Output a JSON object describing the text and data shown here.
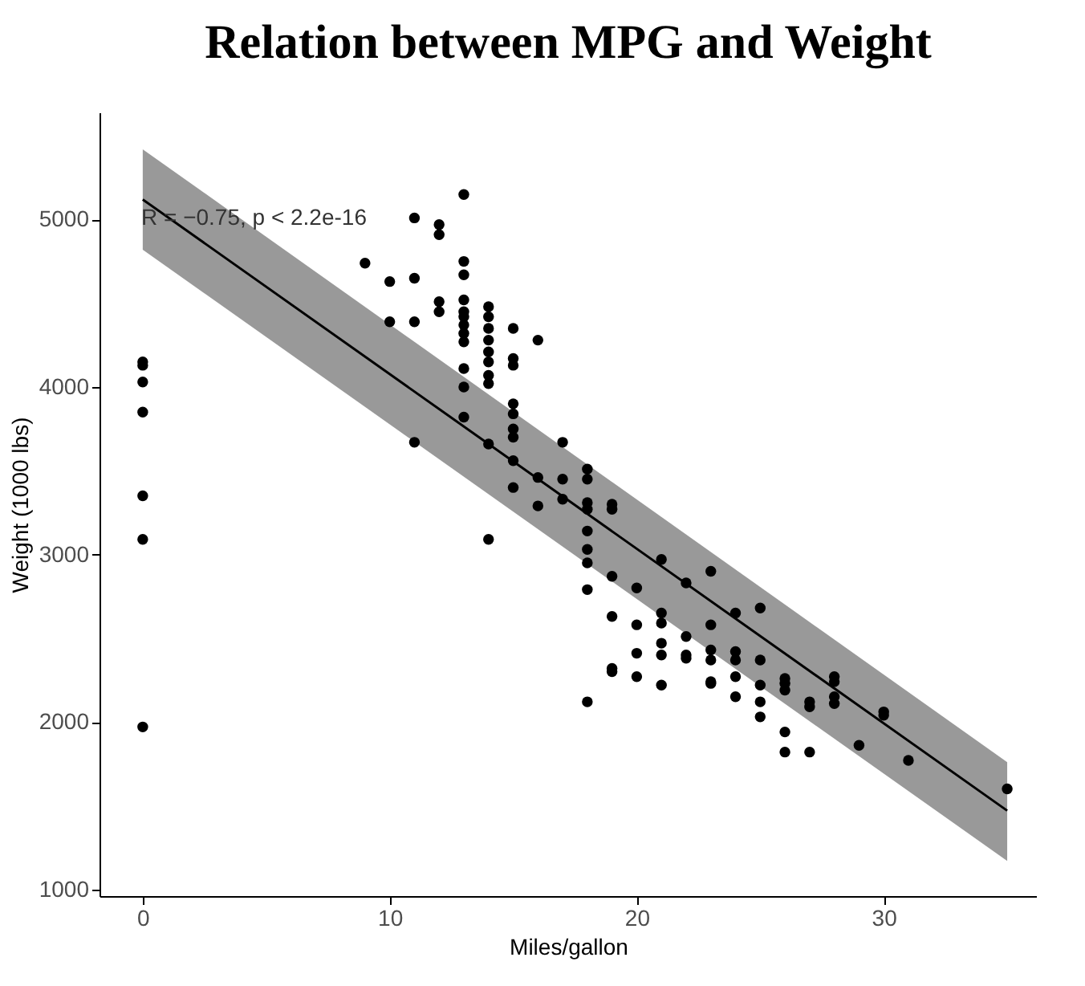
{
  "chart_data": {
    "type": "scatter",
    "title": "Relation between MPG and Weight",
    "xlabel": "Miles/gallon",
    "ylabel": "Weight (1000 lbs)",
    "xlim": [
      -1.75,
      36.2
    ],
    "xticks": [
      0,
      10,
      20,
      30
    ],
    "ylim": [
      960,
      5640
    ],
    "yticks": [
      1000,
      2000,
      3000,
      4000,
      5000
    ],
    "grid": false,
    "annotations": [
      "R = −0.75, p < 2.2e-16"
    ],
    "series": [
      {
        "color": "#000000",
        "marker": "circle",
        "x": [
          0,
          0,
          0,
          0,
          0,
          0,
          0,
          9,
          10,
          10,
          11,
          11,
          11,
          11,
          12,
          12,
          12,
          12,
          13,
          13,
          13,
          13,
          13,
          13,
          13,
          13,
          13,
          13,
          13,
          13,
          14,
          14,
          14,
          14,
          14,
          14,
          14,
          14,
          14,
          14,
          15,
          15,
          15,
          15,
          15,
          15,
          15,
          15,
          15,
          16,
          16,
          16,
          17,
          17,
          17,
          18,
          18,
          18,
          18,
          18,
          18,
          18,
          18,
          18,
          19,
          19,
          19,
          19,
          19,
          19,
          20,
          20,
          20,
          20,
          21,
          21,
          21,
          21,
          21,
          21,
          22,
          22,
          22,
          22,
          23,
          23,
          23,
          23,
          23,
          23,
          24,
          24,
          24,
          24,
          24,
          25,
          25,
          25,
          25,
          25,
          26,
          26,
          26,
          26,
          26,
          27,
          27,
          27,
          28,
          28,
          28,
          28,
          29,
          30,
          30,
          31,
          35
        ],
        "values": [
          4150,
          4130,
          4030,
          3850,
          3350,
          3090,
          1970,
          4740,
          4630,
          4390,
          5010,
          4650,
          4390,
          3670,
          4970,
          4910,
          4510,
          4450,
          5150,
          4750,
          4670,
          4520,
          4450,
          4420,
          4370,
          4320,
          4270,
          4110,
          4000,
          3820,
          4480,
          4420,
          4350,
          4280,
          4210,
          4150,
          4070,
          4020,
          3660,
          3090,
          4350,
          4170,
          4130,
          3900,
          3840,
          3750,
          3700,
          3560,
          3400,
          4280,
          3460,
          3290,
          3670,
          3450,
          3330,
          3510,
          3450,
          3310,
          3270,
          3140,
          3030,
          2950,
          2790,
          2120,
          3300,
          3270,
          2870,
          2630,
          2320,
          2300,
          2800,
          2580,
          2410,
          2270,
          2970,
          2650,
          2590,
          2470,
          2400,
          2220,
          2830,
          2510,
          2400,
          2380,
          2900,
          2580,
          2430,
          2370,
          2240,
          2230,
          2650,
          2420,
          2370,
          2270,
          2150,
          2680,
          2370,
          2220,
          2120,
          2030,
          2260,
          2230,
          2190,
          1940,
          1820,
          2120,
          2090,
          1820,
          2270,
          2240,
          2150,
          2110,
          1860,
          2060,
          2040,
          1770,
          1600
        ]
      },
      {
        "type": "line",
        "color": "#000000",
        "x": [
          0,
          35
        ],
        "values": [
          5120,
          1470
        ],
        "lower": [
          4820,
          1170
        ],
        "upper": [
          5420,
          1760
        ]
      }
    ]
  }
}
